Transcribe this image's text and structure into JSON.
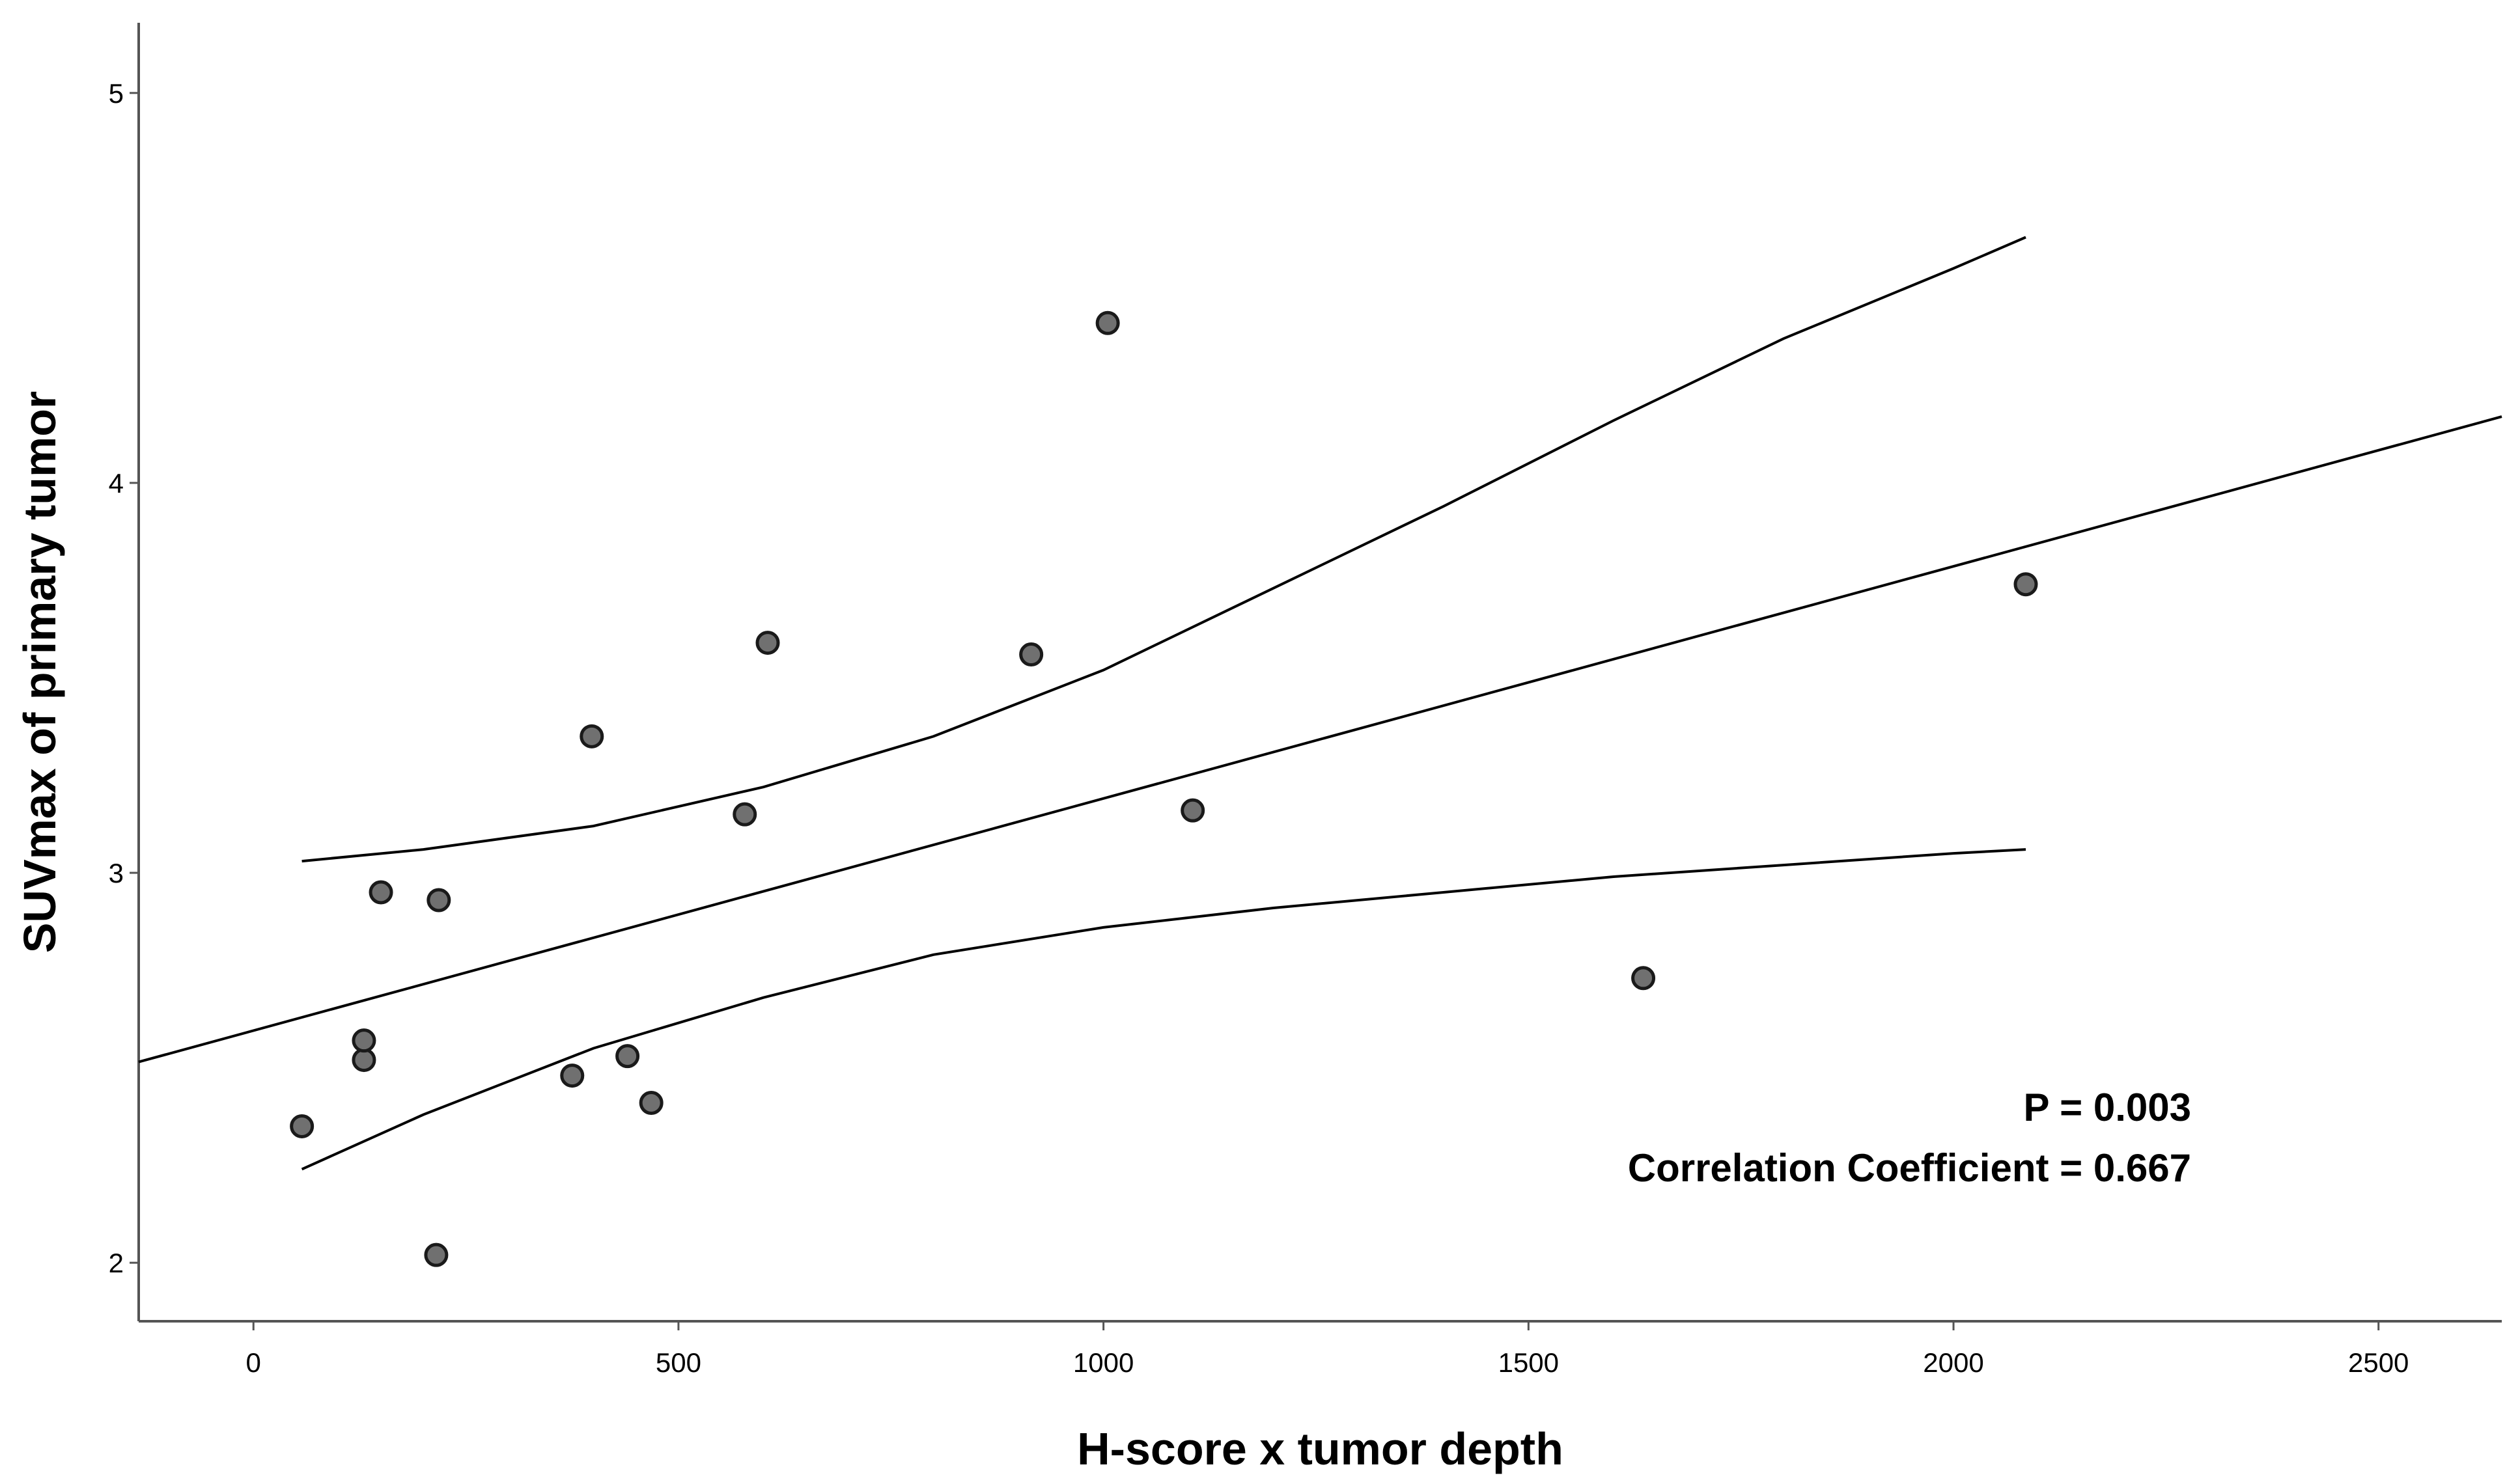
{
  "chart_data": {
    "type": "scatter",
    "xlabel": "H-score x tumor depth",
    "ylabel": "SUVmax of primary tumor",
    "xlim": [
      -135,
      2645
    ],
    "ylim": [
      1.85,
      5.18
    ],
    "x_ticks": [
      0,
      500,
      1000,
      1500,
      2000,
      2500
    ],
    "y_ticks": [
      2,
      3,
      4,
      5
    ],
    "grid": false,
    "points": [
      {
        "x": 57,
        "y": 2.35
      },
      {
        "x": 130,
        "y": 2.52
      },
      {
        "x": 130,
        "y": 2.57
      },
      {
        "x": 150,
        "y": 2.95
      },
      {
        "x": 218,
        "y": 2.93
      },
      {
        "x": 215,
        "y": 2.02
      },
      {
        "x": 375,
        "y": 2.48
      },
      {
        "x": 398,
        "y": 3.35
      },
      {
        "x": 440,
        "y": 2.53
      },
      {
        "x": 468,
        "y": 2.41
      },
      {
        "x": 578,
        "y": 3.15
      },
      {
        "x": 605,
        "y": 3.59
      },
      {
        "x": 915,
        "y": 3.56
      },
      {
        "x": 1005,
        "y": 4.41
      },
      {
        "x": 1105,
        "y": 3.16
      },
      {
        "x": 1635,
        "y": 2.73
      },
      {
        "x": 2085,
        "y": 3.74
      }
    ],
    "fit_line": {
      "x": [
        -135,
        2645
      ],
      "y": [
        2.515,
        4.17
      ]
    },
    "confidence_upper": [
      {
        "x": 57,
        "y": 3.03
      },
      {
        "x": 200,
        "y": 3.06
      },
      {
        "x": 400,
        "y": 3.12
      },
      {
        "x": 600,
        "y": 3.22
      },
      {
        "x": 800,
        "y": 3.35
      },
      {
        "x": 1000,
        "y": 3.52
      },
      {
        "x": 1200,
        "y": 3.73
      },
      {
        "x": 1400,
        "y": 3.94
      },
      {
        "x": 1600,
        "y": 4.16
      },
      {
        "x": 1800,
        "y": 4.37
      },
      {
        "x": 2000,
        "y": 4.55
      },
      {
        "x": 2085,
        "y": 4.63
      }
    ],
    "confidence_lower": [
      {
        "x": 57,
        "y": 2.24
      },
      {
        "x": 200,
        "y": 2.38
      },
      {
        "x": 400,
        "y": 2.55
      },
      {
        "x": 600,
        "y": 2.68
      },
      {
        "x": 800,
        "y": 2.79
      },
      {
        "x": 1000,
        "y": 2.86
      },
      {
        "x": 1200,
        "y": 2.91
      },
      {
        "x": 1400,
        "y": 2.95
      },
      {
        "x": 1600,
        "y": 2.99
      },
      {
        "x": 1800,
        "y": 3.02
      },
      {
        "x": 2000,
        "y": 3.05
      },
      {
        "x": 2085,
        "y": 3.06
      }
    ],
    "annotations": [
      "P = 0.003",
      "Correlation Coefficient = 0.667"
    ],
    "colors": {
      "point_fill": "#707070",
      "point_stroke": "#1a1a1a",
      "line": "#000000",
      "axis": "#555555"
    }
  }
}
